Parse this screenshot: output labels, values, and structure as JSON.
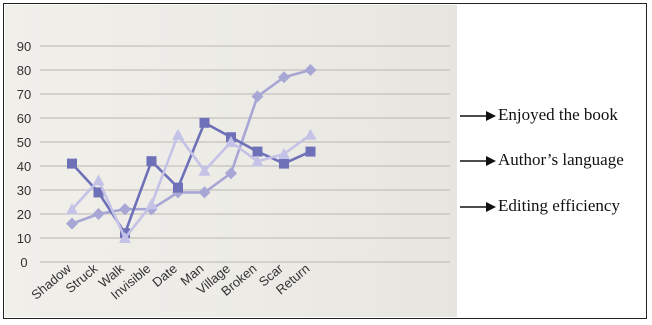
{
  "chart_data": {
    "type": "line",
    "categories": [
      "Shadow",
      "Struck",
      "Walk",
      "Invisible",
      "Date",
      "Man",
      "Village",
      "Broken",
      "Scar",
      "Return"
    ],
    "ylim": [
      0,
      90
    ],
    "yticks": [
      0,
      10,
      20,
      30,
      40,
      50,
      60,
      70,
      80,
      90
    ],
    "grid": true,
    "legend_placement": "right, with arrows",
    "series": [
      {
        "name": "Enjoyed the book",
        "color": "#a8a6d4",
        "marker": "diamond",
        "values": [
          16,
          20,
          22,
          22,
          29,
          29,
          37,
          69,
          77,
          80
        ]
      },
      {
        "name": "Author’s language",
        "color": "#6f71b8",
        "marker": "square",
        "values": [
          41,
          29,
          12,
          42,
          31,
          58,
          52,
          46,
          41,
          46
        ]
      },
      {
        "name": "Editing efficiency",
        "color": "#c4c2e6",
        "marker": "triangle",
        "values": [
          22,
          34,
          10,
          24,
          53,
          38,
          50,
          42,
          45,
          53
        ]
      }
    ]
  },
  "legend": {
    "items": [
      "Enjoyed the book",
      "Author’s language",
      "Editing efficiency"
    ]
  }
}
